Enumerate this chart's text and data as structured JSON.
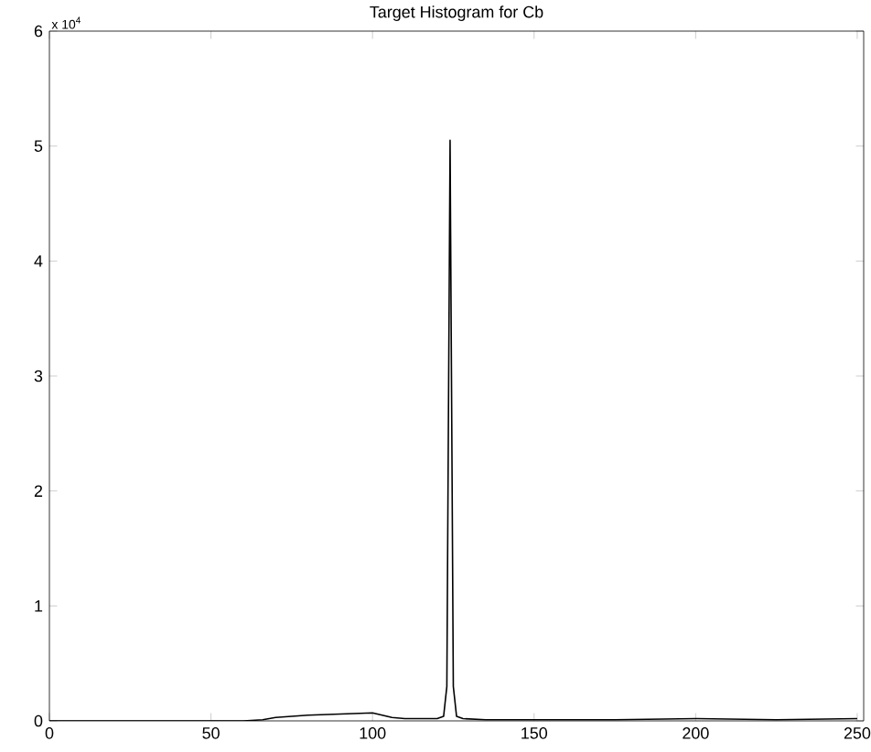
{
  "chart_data": {
    "type": "line",
    "title": "Target Histogram for Cb",
    "annotations": [
      "x 10$^{4}$"
    ],
    "x": [
      0,
      20,
      40,
      60,
      66,
      70,
      80,
      90,
      100,
      106,
      110,
      120,
      122,
      123,
      124,
      125,
      126,
      128,
      135,
      150,
      175,
      200,
      225,
      250
    ],
    "series": [
      {
        "color": "#000000",
        "values": [
          0,
          0,
          0,
          0,
          0.01,
          0.03,
          0.05,
          0.06,
          0.07,
          0.03,
          0.02,
          0.02,
          0.04,
          0.3,
          5.05,
          0.3,
          0.04,
          0.02,
          0.01,
          0.01,
          0.01,
          0.02,
          0.01,
          0.02
        ]
      }
    ],
    "xlim": [
      0,
      252
    ],
    "ylim": [
      0,
      6
    ],
    "xticks": [
      0,
      50,
      100,
      150,
      200,
      250
    ],
    "yticks": [
      0,
      1,
      2,
      3,
      4,
      5,
      6
    ],
    "grid": false,
    "marker": "none",
    "line_style": "solid"
  }
}
